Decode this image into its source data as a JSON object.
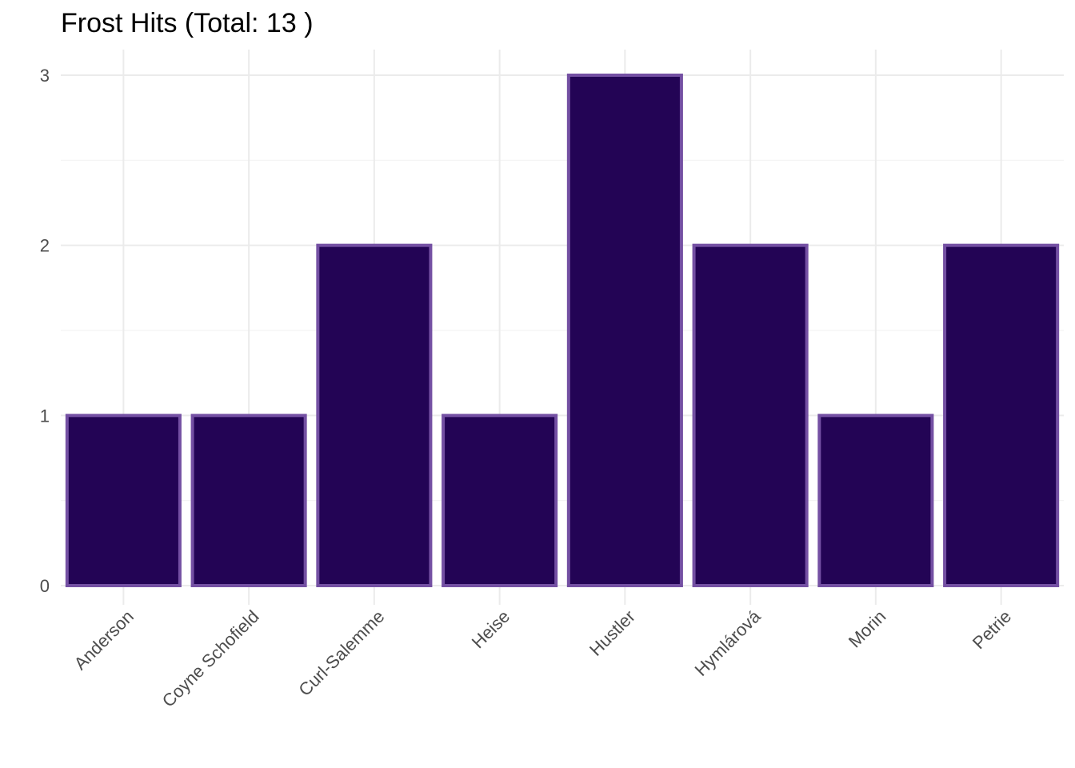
{
  "chart_data": {
    "type": "bar",
    "title": "Frost Hits (Total: 13 )",
    "xlabel": "",
    "ylabel": "",
    "categories": [
      "Anderson",
      "Coyne Schofield",
      "Curl-Salemme",
      "Heise",
      "Hustler",
      "Hymlárová",
      "Morin",
      "Petrie"
    ],
    "values": [
      1,
      1,
      2,
      1,
      3,
      2,
      1,
      2
    ],
    "ylim": [
      0,
      3
    ],
    "yticks": [
      "0",
      "1",
      "2",
      "3"
    ],
    "grid": true,
    "colors": {
      "bar_fill": "#230455",
      "bar_outline": "#7450a3"
    }
  }
}
